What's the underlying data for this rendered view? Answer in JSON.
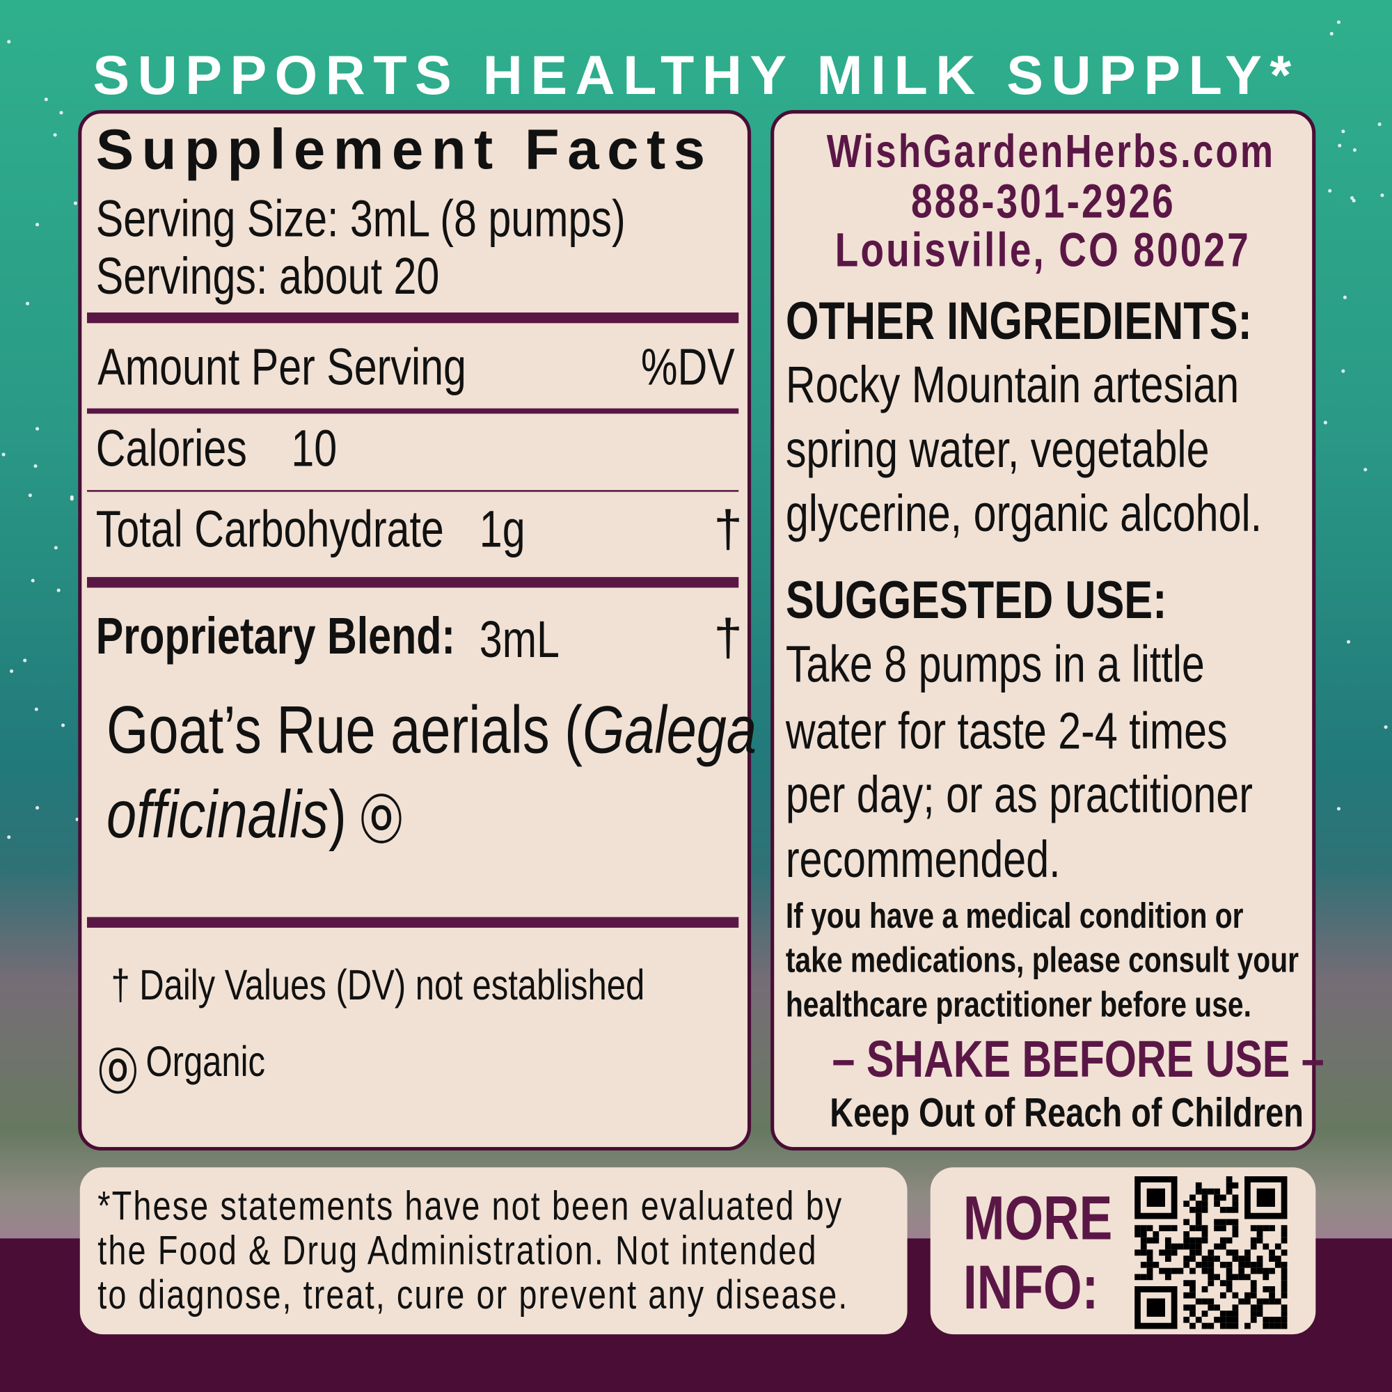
{
  "headline": "SUPPORTS HEALTHY MILK SUPPLY*",
  "colors": {
    "maroon": "#4a0d36",
    "panel": "#f1e1d4",
    "accent_text": "#5a1746",
    "teal": "#2fb08d"
  },
  "facts": {
    "title": "Supplement Facts",
    "serving_size": "Serving Size: 3mL (8 pumps)",
    "servings": "Servings: about 20",
    "amount_header": "Amount Per Serving",
    "dv_header": "%DV",
    "rows": [
      {
        "name": "Calories",
        "amount": "10",
        "dv": ""
      },
      {
        "name": "Total Carbohydrate",
        "amount": "1g",
        "dv": "†"
      }
    ],
    "blend": {
      "name": "Proprietary Blend:",
      "amount": "3mL",
      "dv": "†"
    },
    "ingredient_line1": "Goat’s Rue aerials (",
    "ingredient_latin1": "Galega",
    "ingredient_latin2": "officinalis",
    "ingredient_close": ")",
    "organic_symbol": "O",
    "footnote_dv": "† Daily Values (DV) not established",
    "footnote_organic": "Organic"
  },
  "contact": {
    "website": "WishGardenHerbs.com",
    "phone": "888-301-2926",
    "address": "Louisville, CO 80027"
  },
  "other_ingredients": {
    "heading": "OTHER INGREDIENTS:",
    "lines": [
      "Rocky Mountain artesian",
      "spring water, vegetable",
      "glycerine, organic alcohol."
    ]
  },
  "suggested_use": {
    "heading": "SUGGESTED USE:",
    "lines": [
      "Take 8 pumps in a little",
      "water for taste 2-4 times",
      "per day; or as practitioner",
      "recommended."
    ]
  },
  "warning": {
    "lines": [
      "If you have a medical condition or",
      "take medications, please consult your",
      "healthcare practitioner before use."
    ]
  },
  "shake": "– SHAKE BEFORE USE –",
  "keep_out": "Keep Out of Reach of Children",
  "fda": {
    "lines": [
      "*These statements have not been evaluated by",
      "the Food & Drug Administration. Not intended",
      "to diagnose, treat, cure or prevent any disease."
    ]
  },
  "more_info": {
    "line1": "MORE",
    "line2": "INFO:",
    "qr_icon": "qr-code-icon"
  }
}
